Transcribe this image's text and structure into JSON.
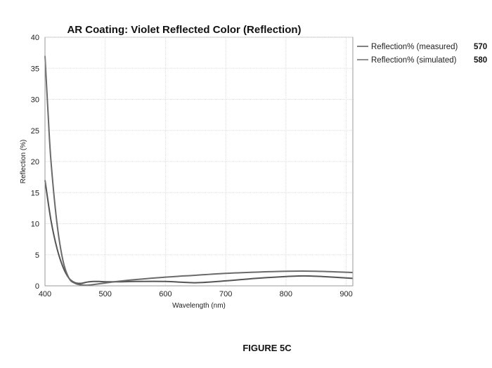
{
  "chart_data": {
    "type": "line",
    "title": "AR Coating: Violet Reflected Color (Reflection)",
    "xlabel": "Wavelength (nm)",
    "ylabel": "Reflection (%)",
    "xlim": [
      400,
      911
    ],
    "ylim": [
      0,
      40
    ],
    "xticks": [
      400,
      500,
      600,
      700,
      800,
      900
    ],
    "yticks": [
      0,
      5,
      10,
      15,
      20,
      25,
      30,
      35,
      40
    ],
    "grid": true,
    "legend_position": "right",
    "series": [
      {
        "name": "Reflection% (measured)",
        "ref": "570",
        "color": "#555555",
        "x": [
          400,
          410,
          420,
          430,
          440,
          450,
          460,
          470,
          480,
          490,
          500,
          520,
          550,
          600,
          650,
          700,
          750,
          800,
          830,
          860,
          911
        ],
        "y": [
          17,
          10.5,
          6,
          3,
          1.2,
          0.5,
          0.4,
          0.6,
          0.7,
          0.7,
          0.65,
          0.65,
          0.7,
          0.7,
          0.5,
          0.8,
          1.2,
          1.5,
          1.6,
          1.5,
          1.2
        ]
      },
      {
        "name": "Reflection% (simulated)",
        "ref": "580",
        "color": "#6a6a6a",
        "x": [
          400,
          405,
          410,
          420,
          430,
          440,
          450,
          460,
          470,
          480,
          500,
          520,
          550,
          600,
          650,
          700,
          750,
          800,
          850,
          911
        ],
        "y": [
          37,
          28,
          20,
          10,
          4,
          1.2,
          0.4,
          0.15,
          0.1,
          0.2,
          0.45,
          0.7,
          1.0,
          1.4,
          1.7,
          2.0,
          2.2,
          2.35,
          2.35,
          2.15
        ]
      }
    ]
  },
  "figure_label": "FIGURE 5C"
}
